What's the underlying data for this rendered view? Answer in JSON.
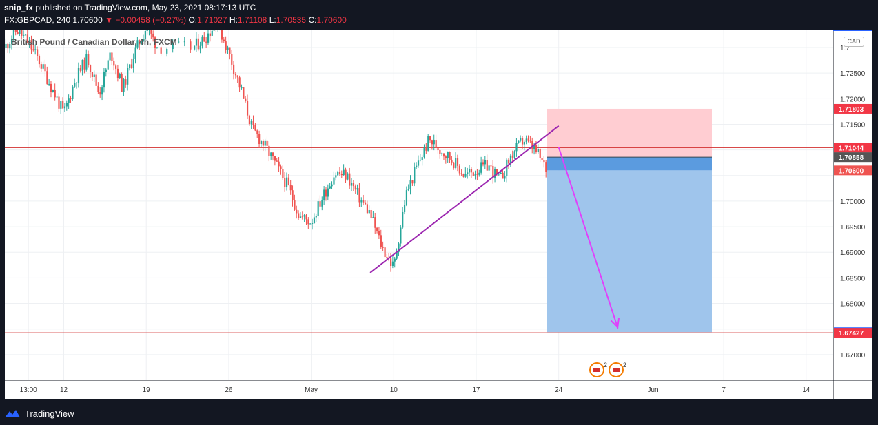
{
  "header": {
    "publisher": "snip_fx",
    "published_text": "published on TradingView.com, May 23, 2021 08:17:13 UTC",
    "symbol": "FX:GBPCAD, 240",
    "last": "1.70600",
    "change": "−0.00458 (−0.27%)",
    "o_label": "O:",
    "o": "1.71027",
    "h_label": "H:",
    "h": "1.71108",
    "l_label": "L:",
    "l": "1.70535",
    "c_label": "C:",
    "c": "1.70600"
  },
  "symbol_title": "British Pound / Canadian Dollar, 4h, FXCM",
  "currency_badge": "CAD",
  "footer": {
    "brand": "TradingView"
  },
  "event_badges": [
    {
      "count": "2"
    },
    {
      "count": "2"
    }
  ],
  "colors": {
    "up": "#26a69a",
    "down": "#ef5350",
    "trendline": "#9c27b0",
    "arrow": "#e040fb",
    "stop_zone": "#ffcdd2",
    "target_zone": "#9fc5ec",
    "entry_band": "#5b9bdf",
    "hline": "#d32f2f"
  },
  "chart_data": {
    "type": "line",
    "title": "British Pound / Canadian Dollar, 4h, FXCM",
    "xlabel": "",
    "ylabel": "",
    "ylim": [
      1.665,
      1.7335
    ],
    "xlim": [
      "2021-04-07",
      "2021-06-18"
    ],
    "x_ticks": [
      {
        "date": "2021-04-09",
        "label": "13:00"
      },
      {
        "date": "2021-04-12",
        "label": "12"
      },
      {
        "date": "2021-04-19",
        "label": "19"
      },
      {
        "date": "2021-04-26",
        "label": "26"
      },
      {
        "date": "2021-05-03",
        "label": "May"
      },
      {
        "date": "2021-05-10",
        "label": "10"
      },
      {
        "date": "2021-05-17",
        "label": "17"
      },
      {
        "date": "2021-05-24",
        "label": "24"
      },
      {
        "date": "2021-06-01",
        "label": "Jun"
      },
      {
        "date": "2021-06-07",
        "label": "7"
      },
      {
        "date": "2021-06-14",
        "label": "14"
      }
    ],
    "y_ticks": [
      "1.72500",
      "1.72000",
      "1.71500",
      "1.70000",
      "1.69500",
      "1.69000",
      "1.68500",
      "1.68000",
      "1.67000"
    ],
    "y_top_label": "1.7",
    "price_labels": [
      {
        "value": 1.71803,
        "text": "1.71803",
        "bg": "#f23645"
      },
      {
        "value": 1.71044,
        "text": "1.71044",
        "bg": "#f23645"
      },
      {
        "value": 1.70858,
        "text": "1.70858",
        "bg": "#555555"
      },
      {
        "value": 1.706,
        "text": "1.70600",
        "bg": "#ef5350"
      },
      {
        "value": 1.67439,
        "text": "1.67439",
        "bg": "#2962ff"
      },
      {
        "value": 1.67427,
        "text": "1.67427",
        "bg": "#f23645"
      }
    ],
    "horizontal_lines": [
      1.71044,
      1.67427
    ],
    "series": [
      {
        "type": "line",
        "x": [
          "2021-04-07",
          "2021-04-08",
          "2021-04-09",
          "2021-04-10",
          "2021-04-11",
          "2021-04-12",
          "2021-04-13",
          "2021-04-14",
          "2021-04-15",
          "2021-04-16",
          "2021-04-17",
          "2021-04-18",
          "2021-04-19",
          "2021-04-20",
          "2021-04-23",
          "2021-04-24",
          "2021-04-25",
          "2021-04-26",
          "2021-04-27",
          "2021-04-28",
          "2021-04-29",
          "2021-04-30",
          "2021-05-01",
          "2021-05-02",
          "2021-05-03",
          "2021-05-04",
          "2021-05-05",
          "2021-05-06",
          "2021-05-07",
          "2021-05-08",
          "2021-05-09",
          "2021-05-10",
          "2021-05-11",
          "2021-05-12",
          "2021-05-13",
          "2021-05-14",
          "2021-05-15",
          "2021-05-16",
          "2021-05-17",
          "2021-05-18",
          "2021-05-19",
          "2021-05-20",
          "2021-05-21",
          "2021-05-22",
          "2021-05-23"
        ],
        "y": [
          1.73,
          1.7335,
          1.731,
          1.727,
          1.722,
          1.717,
          1.724,
          1.728,
          1.721,
          1.729,
          1.722,
          1.729,
          1.734,
          1.73,
          1.73,
          1.732,
          1.735,
          1.729,
          1.722,
          1.714,
          1.711,
          1.707,
          1.703,
          1.697,
          1.696,
          1.701,
          1.7055,
          1.705,
          1.701,
          1.6975,
          1.691,
          1.687,
          1.701,
          1.707,
          1.712,
          1.71,
          1.708,
          1.705,
          1.706,
          1.707,
          1.704,
          1.709,
          1.712,
          1.71,
          1.706
        ]
      }
    ],
    "drawings": {
      "trendline": {
        "from": [
          "2021-05-08",
          1.686
        ],
        "to": [
          "2021-05-24",
          1.7147
        ]
      },
      "projection_arrow": {
        "from": [
          "2021-05-24",
          1.7105
        ],
        "to": [
          "2021-05-29",
          1.6753
        ]
      },
      "position": {
        "x_start": "2021-05-23",
        "x_end": "2021-06-06",
        "stop": 1.71803,
        "entry_top": 1.70858,
        "entry_bottom": 1.706,
        "target": 1.67439
      }
    }
  }
}
